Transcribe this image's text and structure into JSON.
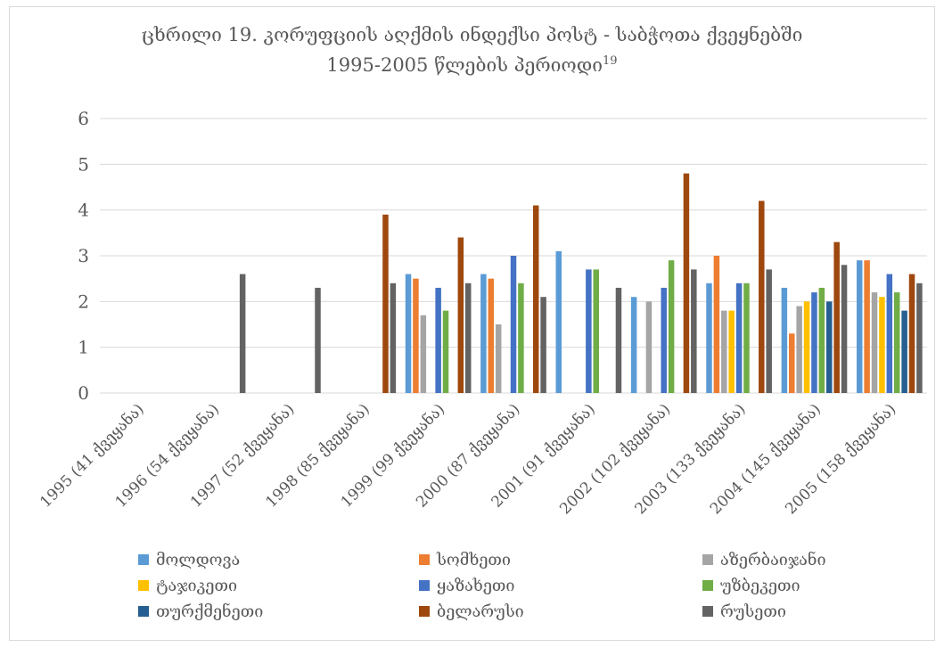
{
  "chart_data": {
    "type": "bar",
    "title": "ცხრილი 19. კორუფციის აღქმის ინდექსი პოსტ - საბჭოთა ქვეყნებში\n1995-2005 წლების პერიოდი",
    "title_superscript": "19",
    "xlabel": "",
    "ylabel": "",
    "ylim": [
      0,
      6
    ],
    "yticks": [
      0,
      1,
      2,
      3,
      4,
      5,
      6
    ],
    "grid": true,
    "legend_position": "bottom",
    "categories": [
      "1995 (41 ქვეყანა)",
      "1996 (54 ქვეყანა)",
      "1997 (52 ქვეყანა)",
      "1998 (85 ქვეყანა)",
      "1999 (99 ქვეყანა)",
      "2000 (87 ქვეყანა)",
      "2001 (91 ქვეყანა)",
      "2002 (102 ქვეყანა)",
      "2003 (133 ქვეყანა)",
      "2004 (145 ქვეყანა)",
      "2005 (158 ქვეყანა)"
    ],
    "series": [
      {
        "name": "მოლდოვა",
        "color": "#5b9bd5",
        "values": [
          null,
          null,
          null,
          null,
          2.6,
          2.6,
          3.1,
          2.1,
          2.4,
          2.3,
          2.9
        ]
      },
      {
        "name": "სომხეთი",
        "color": "#ed7d31",
        "values": [
          null,
          null,
          null,
          null,
          2.5,
          2.5,
          null,
          null,
          3.0,
          1.3,
          2.9
        ]
      },
      {
        "name": "აზერბაიჯანი",
        "color": "#a5a5a5",
        "values": [
          null,
          null,
          null,
          null,
          1.7,
          1.5,
          null,
          2.0,
          1.8,
          1.9,
          2.2
        ]
      },
      {
        "name": "ტაჯიკეთი",
        "color": "#ffc000",
        "values": [
          null,
          null,
          null,
          null,
          null,
          null,
          null,
          null,
          1.8,
          2.0,
          2.1
        ]
      },
      {
        "name": "ყაზახეთი",
        "color": "#4472c4",
        "values": [
          null,
          null,
          null,
          null,
          2.3,
          3.0,
          2.7,
          2.3,
          2.4,
          2.2,
          2.6
        ]
      },
      {
        "name": "უზბეკეთი",
        "color": "#70ad47",
        "values": [
          null,
          null,
          null,
          null,
          1.8,
          2.4,
          2.7,
          2.9,
          2.4,
          2.3,
          2.2
        ]
      },
      {
        "name": "თურქმენეთი",
        "color": "#255e91",
        "values": [
          null,
          null,
          null,
          null,
          null,
          null,
          null,
          null,
          null,
          2.0,
          1.8
        ]
      },
      {
        "name": "ბელარუსი",
        "color": "#9e480e",
        "values": [
          null,
          null,
          null,
          3.9,
          3.4,
          4.1,
          null,
          4.8,
          4.2,
          3.3,
          2.6
        ]
      },
      {
        "name": "რუსეთი",
        "color": "#636363",
        "values": [
          null,
          2.6,
          2.3,
          2.4,
          2.4,
          2.1,
          2.3,
          2.7,
          2.7,
          2.8,
          2.4
        ]
      }
    ]
  }
}
